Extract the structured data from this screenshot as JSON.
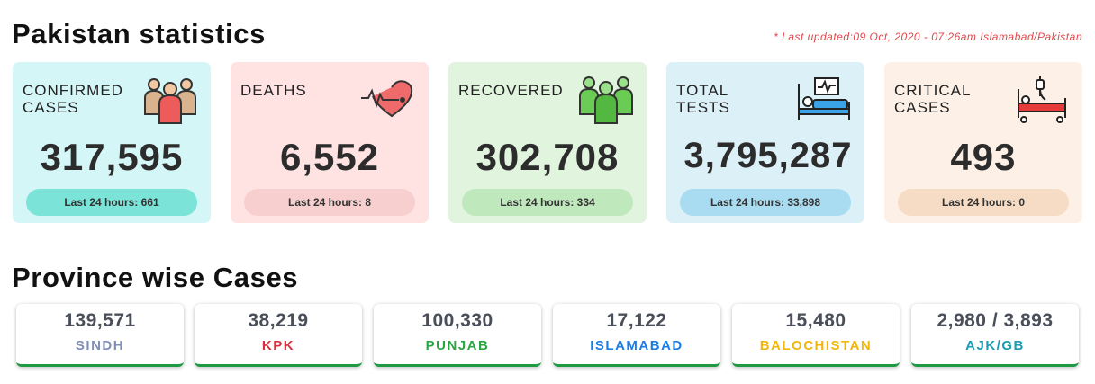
{
  "header": {
    "title": "Pakistan statistics",
    "updated": "* Last updated:09 Oct, 2020 - 07:26am Islamabad/Pakistan"
  },
  "cards": {
    "confirmed": {
      "label_line1": "Confirmed",
      "label_line2": "Cases",
      "value": "317,595",
      "last24": "Last 24 hours: 661",
      "icon": "people-group-icon"
    },
    "deaths": {
      "label_line1": "Deaths",
      "label_line2": "",
      "value": "6,552",
      "last24": "Last 24 hours: 8",
      "icon": "heartbeat-icon"
    },
    "recovered": {
      "label_line1": "Recovered",
      "label_line2": "",
      "value": "302,708",
      "last24": "Last 24 hours: 334",
      "icon": "recovered-people-icon"
    },
    "tests": {
      "label_line1": "Total",
      "label_line2": "Tests",
      "value": "3,795,287",
      "last24": "Last 24 hours: 33,898",
      "icon": "hospital-bed-monitor-icon"
    },
    "critical": {
      "label_line1": "Critical",
      "label_line2": "Cases",
      "value": "493",
      "last24": "Last 24 hours: 0",
      "icon": "hospital-bed-iv-icon"
    }
  },
  "provinces": {
    "title": "Province wise Cases",
    "items": [
      {
        "value": "139,571",
        "name": "SINDH",
        "color": "#7f8fb8"
      },
      {
        "value": "38,219",
        "name": "KPK",
        "color": "#d9303e"
      },
      {
        "value": "100,330",
        "name": "PUNJAB",
        "color": "#2ba541"
      },
      {
        "value": "17,122",
        "name": "ISLAMABAD",
        "color": "#1a7ee6"
      },
      {
        "value": "15,480",
        "name": "BALOCHISTAN",
        "color": "#f0b80c"
      },
      {
        "value": "2,980 / 3,893",
        "name": "AJK/GB",
        "color": "#1d9bb0"
      }
    ]
  },
  "colors": {
    "accent_red": "#e0474c",
    "province_underline": "#1e9a42"
  }
}
